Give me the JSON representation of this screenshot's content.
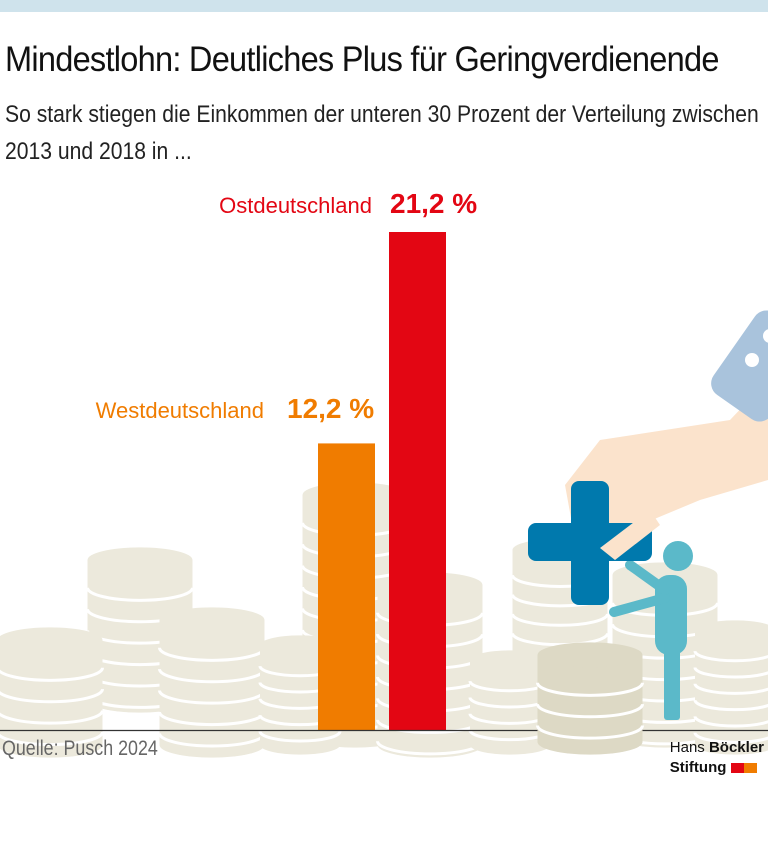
{
  "title": "Mindestlohn: Deutliches Plus für Geringverdienende",
  "subtitle": "So stark stiegen die Einkommen der unteren 30 Prozent der Verteilung zwischen 2013 und 2018 in ...",
  "source": "Quelle: Pusch 2024",
  "logo": {
    "line1_light": "Hans",
    "line1_bold": "Böckler",
    "line2": "Stiftung"
  },
  "colors": {
    "west": "#f07c00",
    "east": "#e30613",
    "coin": "#ece9dc",
    "plus": "#0079ad",
    "person": "#5bb9c9",
    "hand": "#fbe3cc",
    "sleeve": "#a9c3dc"
  },
  "chart_data": {
    "type": "bar",
    "categories": [
      "Westdeutschland",
      "Ostdeutschland"
    ],
    "values": [
      12.2,
      21.2
    ],
    "value_labels": [
      "12,2 %",
      "21,2 %"
    ],
    "unit": "%",
    "ylim": [
      0,
      21.2
    ],
    "grid": false
  }
}
